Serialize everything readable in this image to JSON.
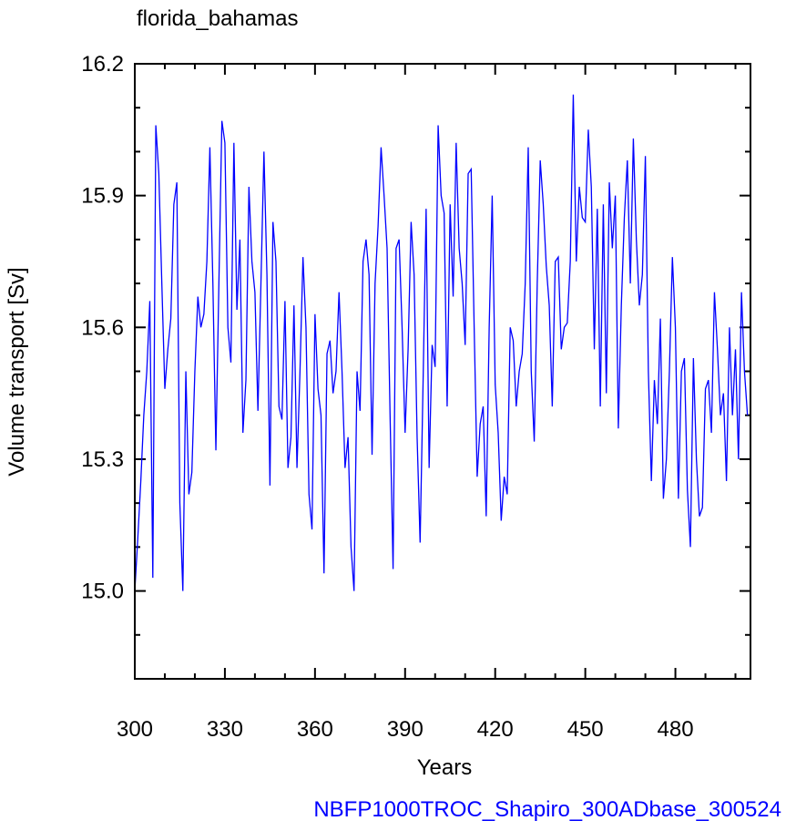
{
  "chart_data": {
    "type": "line",
    "title": "florida_bahamas",
    "subtitle": "NBFP1000TROC_Shapiro_300ADbase_300524",
    "x_label": "Years",
    "y_label": "Volume transport [Sv]",
    "xlim": [
      300,
      505
    ],
    "ylim": [
      14.8,
      16.2
    ],
    "xticks": [
      300,
      330,
      360,
      390,
      420,
      450,
      480
    ],
    "yticks": [
      {
        "value": 15,
        "label": "15.0"
      },
      15.3,
      15.6,
      15.9,
      16.2
    ],
    "xminorticks": [
      310,
      320,
      340,
      350,
      370,
      380,
      400,
      410,
      430,
      440,
      460,
      470,
      490,
      500
    ],
    "yminorticks": [
      14.8,
      14.9,
      15.1,
      15.2,
      15.4,
      15.5,
      15.7,
      15.8,
      16.0,
      16.1
    ],
    "x": [
      300,
      301,
      302,
      303,
      304,
      305,
      306,
      307,
      308,
      309,
      310,
      311,
      312,
      313,
      314,
      315,
      316,
      317,
      318,
      319,
      320,
      321,
      322,
      323,
      324,
      325,
      326,
      327,
      328,
      329,
      330,
      331,
      332,
      333,
      334,
      335,
      336,
      337,
      338,
      339,
      340,
      341,
      342,
      343,
      344,
      345,
      346,
      347,
      348,
      349,
      350,
      351,
      352,
      353,
      354,
      355,
      356,
      357,
      358,
      359,
      360,
      361,
      362,
      363,
      364,
      365,
      366,
      367,
      368,
      369,
      370,
      371,
      372,
      373,
      374,
      375,
      376,
      377,
      378,
      379,
      380,
      381,
      382,
      383,
      384,
      385,
      386,
      387,
      388,
      389,
      390,
      391,
      392,
      393,
      394,
      395,
      396,
      397,
      398,
      399,
      400,
      401,
      402,
      403,
      404,
      405,
      406,
      407,
      408,
      409,
      410,
      411,
      412,
      413,
      414,
      415,
      416,
      417,
      418,
      419,
      420,
      421,
      422,
      423,
      424,
      425,
      426,
      427,
      428,
      429,
      430,
      431,
      432,
      433,
      434,
      435,
      436,
      437,
      438,
      439,
      440,
      441,
      442,
      443,
      444,
      445,
      446,
      447,
      448,
      449,
      450,
      451,
      452,
      453,
      454,
      455,
      456,
      457,
      458,
      459,
      460,
      461,
      462,
      463,
      464,
      465,
      466,
      467,
      468,
      469,
      470,
      471,
      472,
      473,
      474,
      475,
      476,
      477,
      478,
      479,
      480,
      481,
      482,
      483,
      484,
      485,
      486,
      487,
      488,
      489,
      490,
      491,
      492,
      493,
      494,
      495,
      496,
      497,
      498,
      499,
      500,
      501,
      502,
      503,
      504
    ],
    "series": [
      {
        "name": "florida_bahamas",
        "color": "#0000ff",
        "values": [
          15.0,
          15.12,
          15.25,
          15.4,
          15.5,
          15.66,
          15.03,
          16.06,
          15.95,
          15.7,
          15.46,
          15.55,
          15.62,
          15.88,
          15.93,
          15.2,
          15.0,
          15.5,
          15.22,
          15.27,
          15.5,
          15.67,
          15.6,
          15.63,
          15.75,
          16.01,
          15.7,
          15.32,
          15.7,
          16.07,
          16.02,
          15.6,
          15.52,
          16.02,
          15.64,
          15.8,
          15.36,
          15.48,
          15.92,
          15.75,
          15.68,
          15.41,
          15.7,
          16.0,
          15.72,
          15.24,
          15.84,
          15.75,
          15.42,
          15.39,
          15.66,
          15.28,
          15.35,
          15.65,
          15.28,
          15.5,
          15.76,
          15.6,
          15.22,
          15.14,
          15.63,
          15.46,
          15.4,
          15.04,
          15.54,
          15.57,
          15.45,
          15.5,
          15.68,
          15.5,
          15.28,
          15.35,
          15.1,
          15.0,
          15.5,
          15.41,
          15.75,
          15.8,
          15.72,
          15.31,
          15.7,
          15.83,
          16.01,
          15.9,
          15.78,
          15.4,
          15.05,
          15.78,
          15.8,
          15.6,
          15.36,
          15.55,
          15.84,
          15.72,
          15.35,
          15.11,
          15.48,
          15.87,
          15.28,
          15.56,
          15.51,
          16.06,
          15.9,
          15.86,
          15.42,
          15.88,
          15.67,
          16.02,
          15.78,
          15.7,
          15.56,
          15.95,
          15.96,
          15.6,
          15.26,
          15.38,
          15.42,
          15.17,
          15.6,
          15.9,
          15.47,
          15.36,
          15.16,
          15.26,
          15.22,
          15.6,
          15.57,
          15.42,
          15.5,
          15.54,
          15.7,
          16.01,
          15.5,
          15.34,
          15.7,
          15.98,
          15.88,
          15.74,
          15.65,
          15.42,
          15.75,
          15.76,
          15.55,
          15.6,
          15.61,
          15.75,
          16.13,
          15.75,
          15.92,
          15.85,
          15.84,
          16.05,
          15.92,
          15.55,
          15.87,
          15.42,
          15.88,
          15.45,
          15.93,
          15.78,
          15.9,
          15.37,
          15.65,
          15.85,
          15.98,
          15.7,
          16.03,
          15.8,
          15.65,
          15.72,
          15.99,
          15.5,
          15.25,
          15.48,
          15.38,
          15.62,
          15.21,
          15.3,
          15.5,
          15.76,
          15.6,
          15.21,
          15.5,
          15.53,
          15.23,
          15.1,
          15.53,
          15.3,
          15.17,
          15.19,
          15.46,
          15.48,
          15.36,
          15.68,
          15.55,
          15.4,
          15.45,
          15.25,
          15.6,
          15.4,
          15.55,
          15.3,
          15.68,
          15.5,
          15.4
        ]
      }
    ]
  }
}
